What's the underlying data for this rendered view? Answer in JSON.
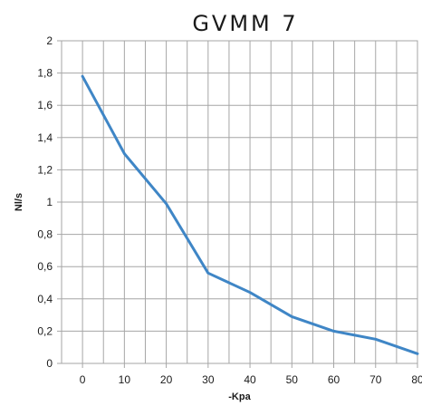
{
  "chart_data": {
    "type": "line",
    "title": "GVMM 7",
    "xlabel": "-Kpa",
    "ylabel": "Nl/s",
    "x": [
      0,
      10,
      20,
      30,
      40,
      50,
      60,
      70,
      80
    ],
    "x_tick_labels": [
      "0",
      "10",
      "20",
      "30",
      "40",
      "50",
      "60",
      "70",
      "80"
    ],
    "y_tick_labels": [
      "0",
      "0,2",
      "0,4",
      "0,6",
      "0,8",
      "1",
      "1,2",
      "1,4",
      "1,6",
      "1,8",
      "2"
    ],
    "xlim": [
      -5,
      80
    ],
    "ylim": [
      0,
      2
    ],
    "grid": true,
    "series": [
      {
        "values": [
          1.78,
          1.3,
          0.99,
          0.56,
          0.44,
          0.29,
          0.2,
          0.15,
          0.06
        ],
        "color": "#3f86c6"
      }
    ]
  }
}
